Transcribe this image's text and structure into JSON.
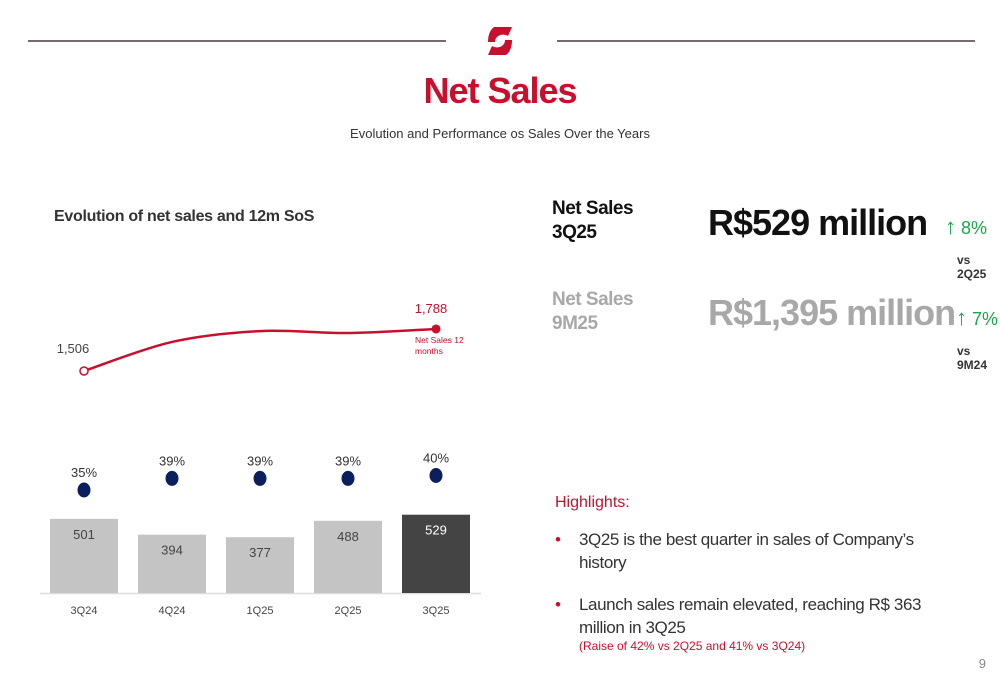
{
  "header": {
    "title": "Net Sales",
    "subtitle": "Evolution and Performance os Sales Over the Years",
    "logo": "company-logo-red",
    "accent_color": "#c8102e"
  },
  "chart_data": {
    "type": "bar+line",
    "title": "Evolution of net sales and 12m SoS",
    "categories": [
      "3Q24",
      "4Q24",
      "1Q25",
      "2Q25",
      "3Q25"
    ],
    "series": [
      {
        "type": "bar",
        "values": [
          501,
          394,
          377,
          488,
          529
        ],
        "labels": [
          "501",
          "394",
          "377",
          "488",
          "529"
        ],
        "color": "#c4c4c4",
        "highlight_color": "#444444"
      },
      {
        "type": "scatter",
        "values": [
          35,
          39,
          39,
          39,
          40
        ],
        "labels": [
          "35%",
          "39%",
          "39%",
          "39%",
          "40%"
        ],
        "color": "#0b1f5c"
      },
      {
        "type": "line",
        "name": "Net Sales 12 months",
        "values": [
          1506,
          1701,
          1774,
          1761,
          1788
        ],
        "labels": {
          "first": "1,506",
          "last": "1,788"
        },
        "color": "#c8102e"
      }
    ],
    "grid": false
  },
  "kpis": [
    {
      "label_line1": "Net Sales",
      "label_line2": "3Q25",
      "value": "R$529 million",
      "delta": "8%",
      "delta_arrow": "↑",
      "vs": "vs 2Q25"
    },
    {
      "label_line1": "Net Sales",
      "label_line2": "9M25",
      "value": "R$1,395 million",
      "delta": "7%",
      "delta_arrow": "↑",
      "vs": "vs 9M24"
    }
  ],
  "highlights": {
    "title": "Highlights:",
    "bullet": "•",
    "items": [
      {
        "text": "3Q25 is the best quarter in sales of Company’s history"
      },
      {
        "text": "Launch sales remain elevated, reaching R$ 363 million in 3Q25",
        "note": "(Raise of 42% vs 2Q25 and 41% vs 3Q24)"
      }
    ]
  },
  "page_number": "9"
}
